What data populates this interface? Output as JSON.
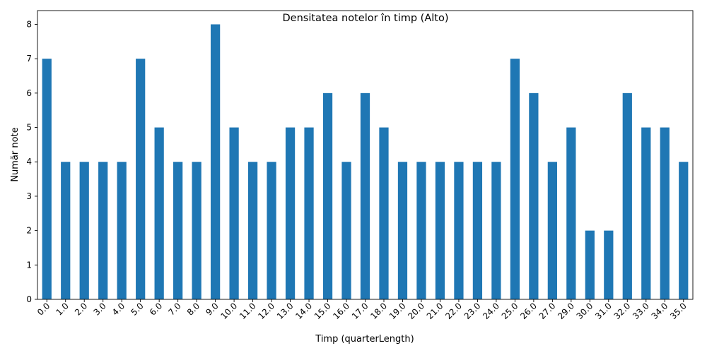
{
  "chart_data": {
    "type": "bar",
    "title": "Densitatea notelor în timp (Alto)",
    "xlabel": "Timp (quarterLength)",
    "ylabel": "Număr note",
    "categories": [
      "0.0",
      "1.0",
      "2.0",
      "3.0",
      "4.0",
      "5.0",
      "6.0",
      "7.0",
      "8.0",
      "9.0",
      "10.0",
      "11.0",
      "12.0",
      "13.0",
      "14.0",
      "15.0",
      "16.0",
      "17.0",
      "18.0",
      "19.0",
      "20.0",
      "21.0",
      "22.0",
      "23.0",
      "24.0",
      "25.0",
      "26.0",
      "27.0",
      "29.0",
      "30.0",
      "31.0",
      "32.0",
      "33.0",
      "34.0",
      "35.0"
    ],
    "values": [
      7,
      4,
      4,
      4,
      4,
      7,
      5,
      4,
      4,
      8,
      5,
      4,
      4,
      5,
      5,
      6,
      4,
      6,
      5,
      4,
      4,
      4,
      4,
      4,
      4,
      7,
      6,
      4,
      5,
      2,
      2,
      6,
      5,
      5,
      4
    ],
    "ylim": [
      0,
      8.4
    ],
    "yticks": [
      0,
      1,
      2,
      3,
      4,
      5,
      6,
      7,
      8
    ],
    "bar_color": "#1f77b4",
    "grid": false,
    "legend": "none"
  }
}
